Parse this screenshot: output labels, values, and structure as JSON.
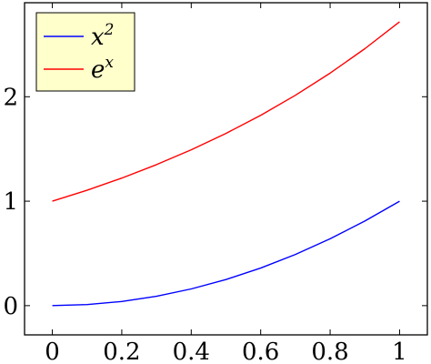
{
  "chart_data": {
    "type": "line",
    "title": "",
    "xlabel": "",
    "ylabel": "",
    "xlim": [
      -0.08,
      1.08
    ],
    "ylim": [
      -0.28,
      2.9
    ],
    "grid": false,
    "legend_position": "top-left",
    "x_ticks": [
      "0",
      "0.2",
      "0.4",
      "0.6",
      "0.8",
      "1"
    ],
    "y_ticks": [
      "0",
      "1",
      "2"
    ],
    "series": [
      {
        "name": "x^2",
        "legend_base": "x",
        "legend_sup": "2",
        "color": "#0000ff",
        "x": [
          0,
          0.1,
          0.2,
          0.3,
          0.4,
          0.5,
          0.6,
          0.7,
          0.8,
          0.9,
          1.0
        ],
        "y": [
          0,
          0.01,
          0.04,
          0.09,
          0.16,
          0.25,
          0.36,
          0.49,
          0.64,
          0.81,
          1.0
        ]
      },
      {
        "name": "e^x",
        "legend_base": "e",
        "legend_sup": "x",
        "color": "#ff0000",
        "x": [
          0,
          0.1,
          0.2,
          0.3,
          0.4,
          0.5,
          0.6,
          0.7,
          0.8,
          0.9,
          1.0
        ],
        "y": [
          1.0,
          1.105,
          1.221,
          1.35,
          1.492,
          1.649,
          1.822,
          2.014,
          2.226,
          2.46,
          2.718
        ]
      }
    ],
    "legend_background": "#ffffcc"
  }
}
